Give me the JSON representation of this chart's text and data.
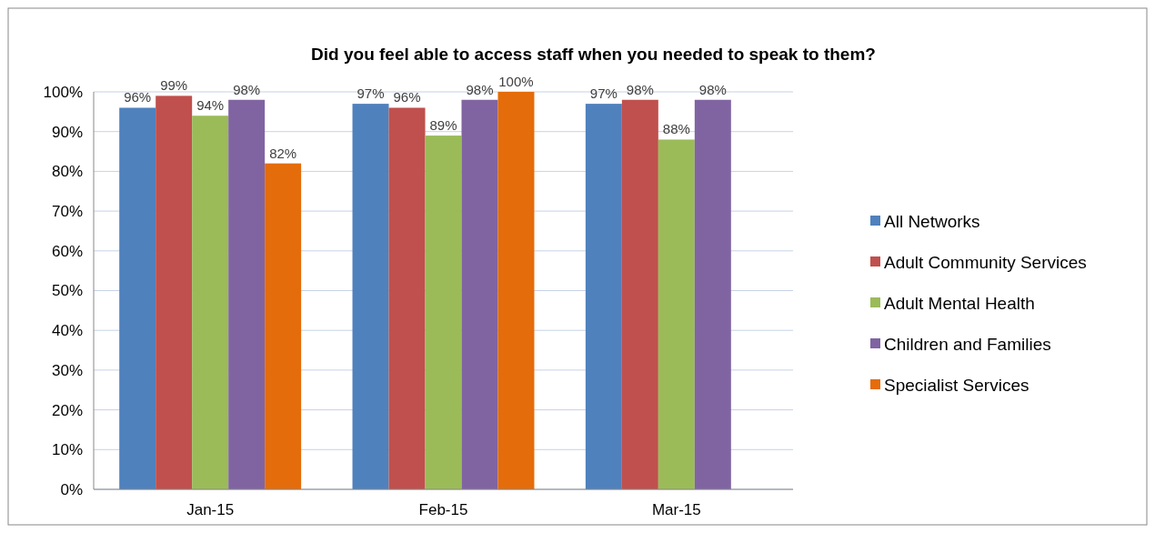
{
  "chart_data": {
    "type": "bar",
    "title": "Did you feel able to access staff when you needed to speak to them?",
    "categories": [
      "Jan-15",
      "Feb-15",
      "Mar-15"
    ],
    "series": [
      {
        "name": "All Networks",
        "color": "#4f81bd",
        "values": [
          96,
          97,
          97
        ],
        "value_labels": [
          "96%",
          "97%",
          "97%"
        ]
      },
      {
        "name": "Adult Community Services",
        "color": "#c0504d",
        "values": [
          99,
          96,
          98
        ],
        "value_labels": [
          "99%",
          "96%",
          "98%"
        ]
      },
      {
        "name": "Adult Mental Health",
        "color": "#9bbb59",
        "values": [
          94,
          89,
          88
        ],
        "value_labels": [
          "94%",
          "89%",
          "88%"
        ]
      },
      {
        "name": "Children and Families",
        "color": "#8064a2",
        "values": [
          98,
          98,
          98
        ],
        "value_labels": [
          "98%",
          "98%",
          "98%"
        ]
      },
      {
        "name": "Specialist Services",
        "color": "#e46c0a",
        "values": [
          82,
          100,
          null
        ],
        "value_labels": [
          "82%",
          "100%",
          null
        ]
      }
    ],
    "ylim": [
      0,
      100
    ],
    "yticks": [
      {
        "value": 0,
        "label": "0%"
      },
      {
        "value": 10,
        "label": "10%"
      },
      {
        "value": 20,
        "label": "20%"
      },
      {
        "value": 30,
        "label": "30%"
      },
      {
        "value": 40,
        "label": "40%"
      },
      {
        "value": 50,
        "label": "50%"
      },
      {
        "value": 60,
        "label": "60%"
      },
      {
        "value": 70,
        "label": "70%"
      },
      {
        "value": 80,
        "label": "80%"
      },
      {
        "value": 90,
        "label": "90%"
      },
      {
        "value": 100,
        "label": "100%"
      }
    ],
    "grid": "y",
    "legend": "right"
  }
}
